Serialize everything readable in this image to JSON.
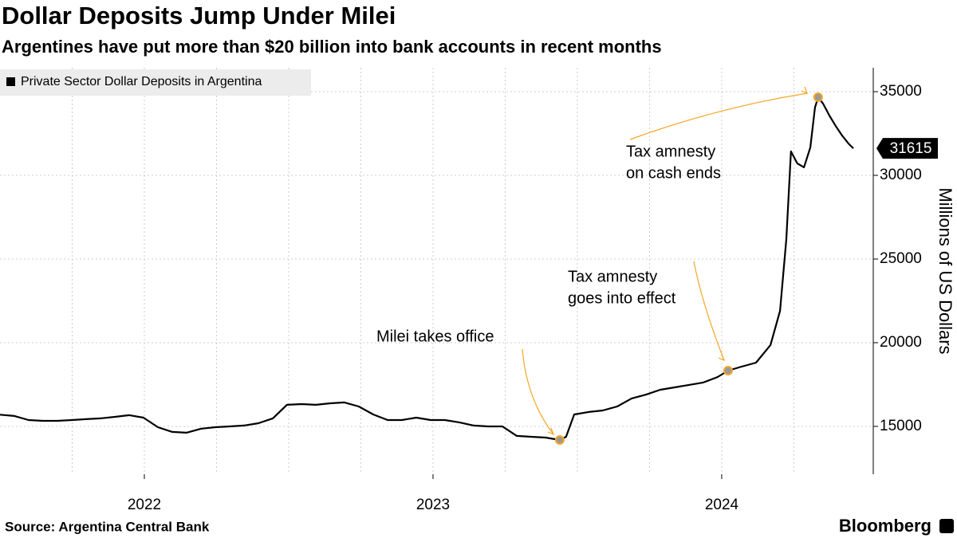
{
  "chart_data": {
    "type": "line",
    "title": "Dollar Deposits Jump Under Milei",
    "subtitle": "Argentines have put more than $20 billion into bank accounts in recent months",
    "y_axis_label": "Millions of US Dollars",
    "source": "Source: Argentina Central Bank",
    "brand": "Bloomberg",
    "legend_position": "top-left",
    "grid": true,
    "xlim": [
      2022,
      2025.025
    ],
    "xticks": [
      {
        "value": 2022.5,
        "label": "2022"
      },
      {
        "value": 2023.5,
        "label": "2023"
      },
      {
        "value": 2024.5,
        "label": "2024"
      }
    ],
    "x_grid": [
      2022.25,
      2022.5,
      2022.75,
      2023,
      2023.25,
      2023.5,
      2023.75,
      2024,
      2024.25,
      2024.5,
      2024.75
    ],
    "ylim": [
      12140,
      36430
    ],
    "yticks": [
      15000,
      20000,
      25000,
      30000,
      35000
    ],
    "x": [
      2022.0,
      2022.05,
      2022.099,
      2022.149,
      2022.199,
      2022.249,
      2022.298,
      2022.348,
      2022.398,
      2022.448,
      2022.497,
      2022.547,
      2022.597,
      2022.646,
      2022.696,
      2022.746,
      2022.796,
      2022.845,
      2022.895,
      2022.945,
      2022.994,
      2023.044,
      2023.094,
      2023.144,
      2023.193,
      2023.243,
      2023.293,
      2023.343,
      2023.392,
      2023.442,
      2023.492,
      2023.541,
      2023.591,
      2023.641,
      2023.691,
      2023.74,
      2023.79,
      2023.84,
      2023.89,
      2023.939,
      2023.961,
      2023.989,
      2024.039,
      2024.088,
      2024.138,
      2024.188,
      2024.238,
      2024.287,
      2024.337,
      2024.387,
      2024.436,
      2024.486,
      2024.522,
      2024.569,
      2024.619,
      2024.669,
      2024.702,
      2024.724,
      2024.74,
      2024.762,
      2024.785,
      2024.807,
      2024.823,
      2024.834,
      2024.851,
      2024.873,
      2024.895,
      2024.917,
      2024.939,
      2024.956
    ],
    "series": [
      {
        "name": "Private Sector Dollar Deposits in Argentina",
        "color": "#000000",
        "values": [
          15700,
          15620,
          15380,
          15330,
          15330,
          15380,
          15430,
          15480,
          15570,
          15670,
          15520,
          14950,
          14670,
          14620,
          14860,
          14950,
          15000,
          15050,
          15190,
          15480,
          16290,
          16330,
          16290,
          16380,
          16430,
          16190,
          15710,
          15380,
          15380,
          15520,
          15380,
          15380,
          15240,
          15050,
          15000,
          15000,
          14430,
          14380,
          14330,
          14190,
          14380,
          15710,
          15860,
          15950,
          16190,
          16670,
          16900,
          17190,
          17330,
          17480,
          17620,
          17950,
          18330,
          18570,
          18810,
          19860,
          21900,
          26190,
          31430,
          30710,
          30480,
          31670,
          34050,
          34670,
          34290,
          33570,
          32950,
          32380,
          31900,
          31615
        ]
      }
    ],
    "annotations": [
      {
        "text": [
          "Milei takes office"
        ],
        "x": 2023.939,
        "y": 14190
      },
      {
        "text": [
          "Tax amnesty",
          "goes into effect"
        ],
        "x": 2024.522,
        "y": 18330
      },
      {
        "text": [
          "Tax amnesty",
          "on cash ends"
        ],
        "x": 2024.834,
        "y": 34670
      }
    ],
    "annotation_color": "#f5a623"
  }
}
